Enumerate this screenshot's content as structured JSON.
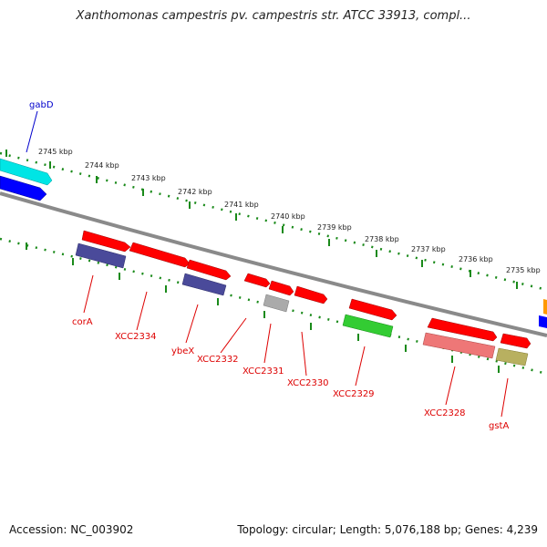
{
  "title": "Xanthomonas campestris pv. campestris str. ATCC 33913, compl...",
  "footer": {
    "accession": "Accession: NC_003902",
    "summary": "Topology: circular; Length: 5,076,188 bp; Genes: 4,239"
  },
  "scale_labels": [
    "2745 kbp",
    "2744 kbp",
    "2743 kbp",
    "2742 kbp",
    "2741 kbp",
    "2740 kbp",
    "2739 kbp",
    "2738 kbp",
    "2737 kbp",
    "2736 kbp",
    "2735 kbp"
  ],
  "gene_labels": [
    {
      "name": "gabD",
      "color": "#0000cc"
    },
    {
      "name": "corA",
      "color": "#dd0000"
    },
    {
      "name": "XCC2334",
      "color": "#dd0000"
    },
    {
      "name": "ybeX",
      "color": "#dd0000"
    },
    {
      "name": "XCC2332",
      "color": "#dd0000"
    },
    {
      "name": "XCC2331",
      "color": "#dd0000"
    },
    {
      "name": "XCC2330",
      "color": "#dd0000"
    },
    {
      "name": "XCC2329",
      "color": "#dd0000"
    },
    {
      "name": "XCC2328",
      "color": "#dd0000"
    },
    {
      "name": "gstA",
      "color": "#dd0000"
    }
  ],
  "colors": {
    "backbone": "#8a8a8a",
    "tick": "#1a8a1a",
    "gene_red": "#ff0000",
    "gene_cyan": "#00e5e5",
    "gene_blue": "#0000ff",
    "gene_navy": "#4a4a9a",
    "gene_green": "#33cc33",
    "gene_gray": "#aaaaaa",
    "gene_pink": "#ee7777",
    "gene_olive": "#b8b060",
    "gene_orange": "#ff9900"
  }
}
